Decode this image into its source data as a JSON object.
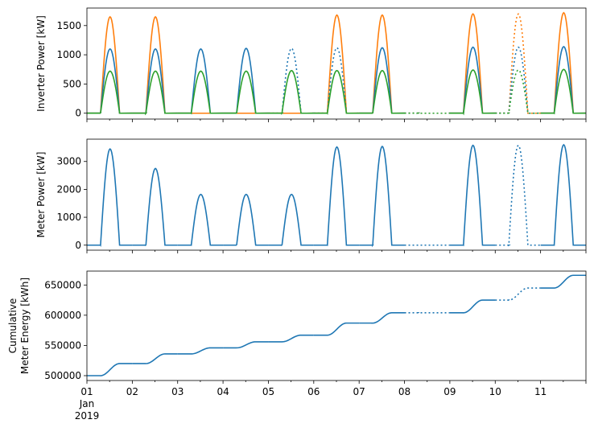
{
  "chart_data": [
    {
      "type": "line",
      "ylabel": "Inverter Power [kW]",
      "ylim": [
        -100,
        1800
      ],
      "yticks": [
        0,
        500,
        1000,
        1500
      ],
      "series": [
        {
          "color": "#ff7f0e",
          "style": "solid-with-dotted-gaps",
          "peaks": [
            {
              "day": 1,
              "peak": 1650,
              "present": true
            },
            {
              "day": 2,
              "peak": 1650,
              "present": true
            },
            {
              "day": 3,
              "peak": 0,
              "present": true
            },
            {
              "day": 4,
              "peak": 0,
              "present": true
            },
            {
              "day": 5,
              "peak": 0,
              "present": true
            },
            {
              "day": 6,
              "peak": 1680,
              "present": true
            },
            {
              "day": 7,
              "peak": 1680,
              "present": true
            },
            {
              "day": 8,
              "peak": 0,
              "present": false
            },
            {
              "day": 9,
              "peak": 1700,
              "present": true
            },
            {
              "day": 10,
              "peak": 1700,
              "present": false
            },
            {
              "day": 11,
              "peak": 1720,
              "present": true
            }
          ]
        },
        {
          "color": "#1f77b4",
          "style": "solid-with-dotted-gaps",
          "peaks": [
            {
              "day": 1,
              "peak": 1100,
              "present": true
            },
            {
              "day": 2,
              "peak": 1100,
              "present": true
            },
            {
              "day": 3,
              "peak": 1100,
              "present": true
            },
            {
              "day": 4,
              "peak": 1110,
              "present": true
            },
            {
              "day": 5,
              "peak": 1110,
              "present": false
            },
            {
              "day": 6,
              "peak": 1120,
              "present": false
            },
            {
              "day": 7,
              "peak": 1120,
              "present": true
            },
            {
              "day": 8,
              "peak": 0,
              "present": false
            },
            {
              "day": 9,
              "peak": 1130,
              "present": true
            },
            {
              "day": 10,
              "peak": 1130,
              "present": false
            },
            {
              "day": 11,
              "peak": 1140,
              "present": true
            }
          ]
        },
        {
          "color": "#2ca02c",
          "style": "solid-with-dotted-gaps",
          "peaks": [
            {
              "day": 1,
              "peak": 720,
              "present": true
            },
            {
              "day": 2,
              "peak": 720,
              "present": true
            },
            {
              "day": 3,
              "peak": 720,
              "present": true
            },
            {
              "day": 4,
              "peak": 720,
              "present": true
            },
            {
              "day": 5,
              "peak": 730,
              "present": true
            },
            {
              "day": 6,
              "peak": 730,
              "present": true
            },
            {
              "day": 7,
              "peak": 730,
              "present": true
            },
            {
              "day": 8,
              "peak": 0,
              "present": false
            },
            {
              "day": 9,
              "peak": 740,
              "present": true
            },
            {
              "day": 10,
              "peak": 740,
              "present": false
            },
            {
              "day": 11,
              "peak": 750,
              "present": true
            }
          ]
        }
      ]
    },
    {
      "type": "line",
      "ylabel": "Meter Power [kW]",
      "ylim": [
        -180,
        3800
      ],
      "yticks": [
        0,
        1000,
        2000,
        3000
      ],
      "series": [
        {
          "color": "#1f77b4",
          "peaks": [
            {
              "day": 1,
              "peak": 3450,
              "present": true
            },
            {
              "day": 2,
              "peak": 2750,
              "present": true
            },
            {
              "day": 3,
              "peak": 1820,
              "present": true
            },
            {
              "day": 4,
              "peak": 1820,
              "present": true
            },
            {
              "day": 5,
              "peak": 1820,
              "present": true
            },
            {
              "day": 6,
              "peak": 3520,
              "present": true
            },
            {
              "day": 7,
              "peak": 3540,
              "present": true
            },
            {
              "day": 8,
              "peak": 0,
              "present": false
            },
            {
              "day": 9,
              "peak": 3580,
              "present": true
            },
            {
              "day": 10,
              "peak": 3580,
              "present": false
            },
            {
              "day": 11,
              "peak": 3600,
              "present": true
            }
          ]
        }
      ]
    },
    {
      "type": "line",
      "ylabel_lines": [
        "Cumulative",
        "Meter Energy [kWh]"
      ],
      "ylim": [
        492000,
        673000
      ],
      "yticks": [
        500000,
        550000,
        600000,
        650000
      ],
      "series": [
        {
          "color": "#1f77b4",
          "daily_levels": [
            {
              "day": 1,
              "start": 500000,
              "end": 520000,
              "present": true
            },
            {
              "day": 2,
              "start": 520000,
              "end": 536000,
              "present": true
            },
            {
              "day": 3,
              "start": 536000,
              "end": 546000,
              "present": true
            },
            {
              "day": 4,
              "start": 546000,
              "end": 556000,
              "present": true
            },
            {
              "day": 5,
              "start": 556000,
              "end": 567000,
              "present": true
            },
            {
              "day": 6,
              "start": 567000,
              "end": 587000,
              "present": true
            },
            {
              "day": 7,
              "start": 587000,
              "end": 604000,
              "present": true
            },
            {
              "day": 8,
              "start": 604000,
              "end": 604000,
              "present": false
            },
            {
              "day": 9,
              "start": 604000,
              "end": 625000,
              "present": true
            },
            {
              "day": 10,
              "start": 625000,
              "end": 645000,
              "present": false
            },
            {
              "day": 11,
              "start": 645000,
              "end": 666000,
              "present": true
            }
          ]
        }
      ]
    }
  ],
  "xaxis": {
    "start": "2019-01-01",
    "end": "2019-01-12",
    "tick_labels": [
      "01",
      "02",
      "03",
      "04",
      "05",
      "06",
      "07",
      "08",
      "09",
      "10",
      "11"
    ],
    "first_label_month": "Jan",
    "first_label_year": "2019"
  }
}
